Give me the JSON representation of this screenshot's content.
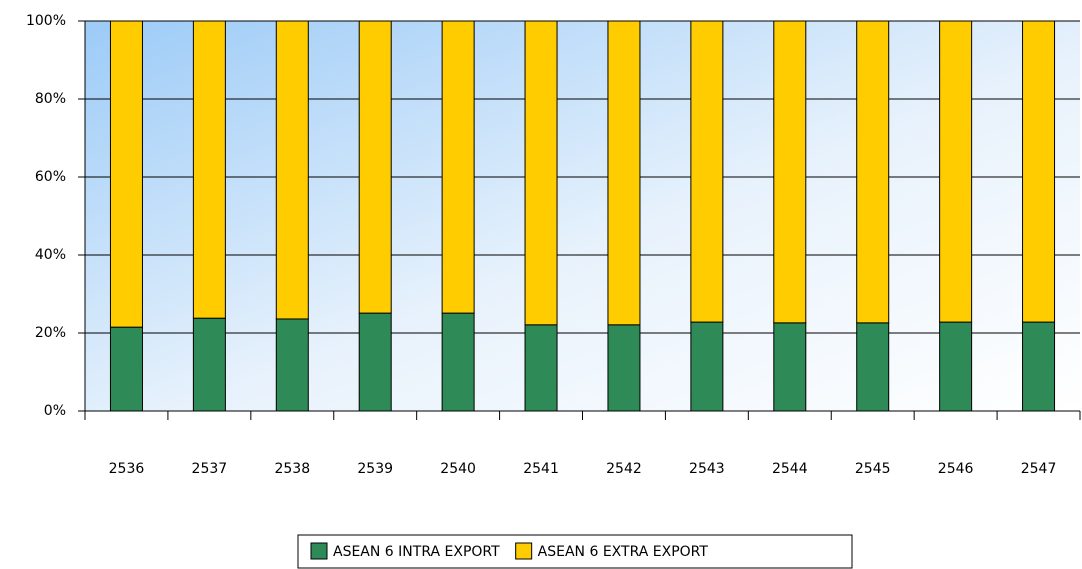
{
  "chart_data": {
    "type": "stacked_bar",
    "categories": [
      "2536",
      "2537",
      "2538",
      "2539",
      "2540",
      "2541",
      "2542",
      "2543",
      "2544",
      "2545",
      "2546",
      "2547"
    ],
    "series": [
      {
        "name": "ASEAN 6 INTRA EXPORT",
        "color": "#2e8b57",
        "values": [
          21.5,
          23.8,
          23.6,
          25.1,
          25.1,
          22.1,
          22.1,
          22.8,
          22.6,
          22.6,
          22.8,
          22.8
        ]
      },
      {
        "name": "ASEAN 6 EXTRA EXPORT",
        "color": "#ffcc00",
        "values": [
          78.5,
          76.2,
          76.4,
          74.9,
          74.9,
          77.9,
          77.9,
          77.2,
          77.4,
          77.4,
          77.2,
          77.2
        ]
      }
    ],
    "ylim": [
      0,
      100
    ],
    "yticks": [
      {
        "value": 0,
        "label": "0%"
      },
      {
        "value": 20,
        "label": "20%"
      },
      {
        "value": 40,
        "label": "40%"
      },
      {
        "value": 60,
        "label": "60%"
      },
      {
        "value": 80,
        "label": "80%"
      },
      {
        "value": 100,
        "label": "100%"
      }
    ],
    "grid": true,
    "legend": "bottom"
  }
}
